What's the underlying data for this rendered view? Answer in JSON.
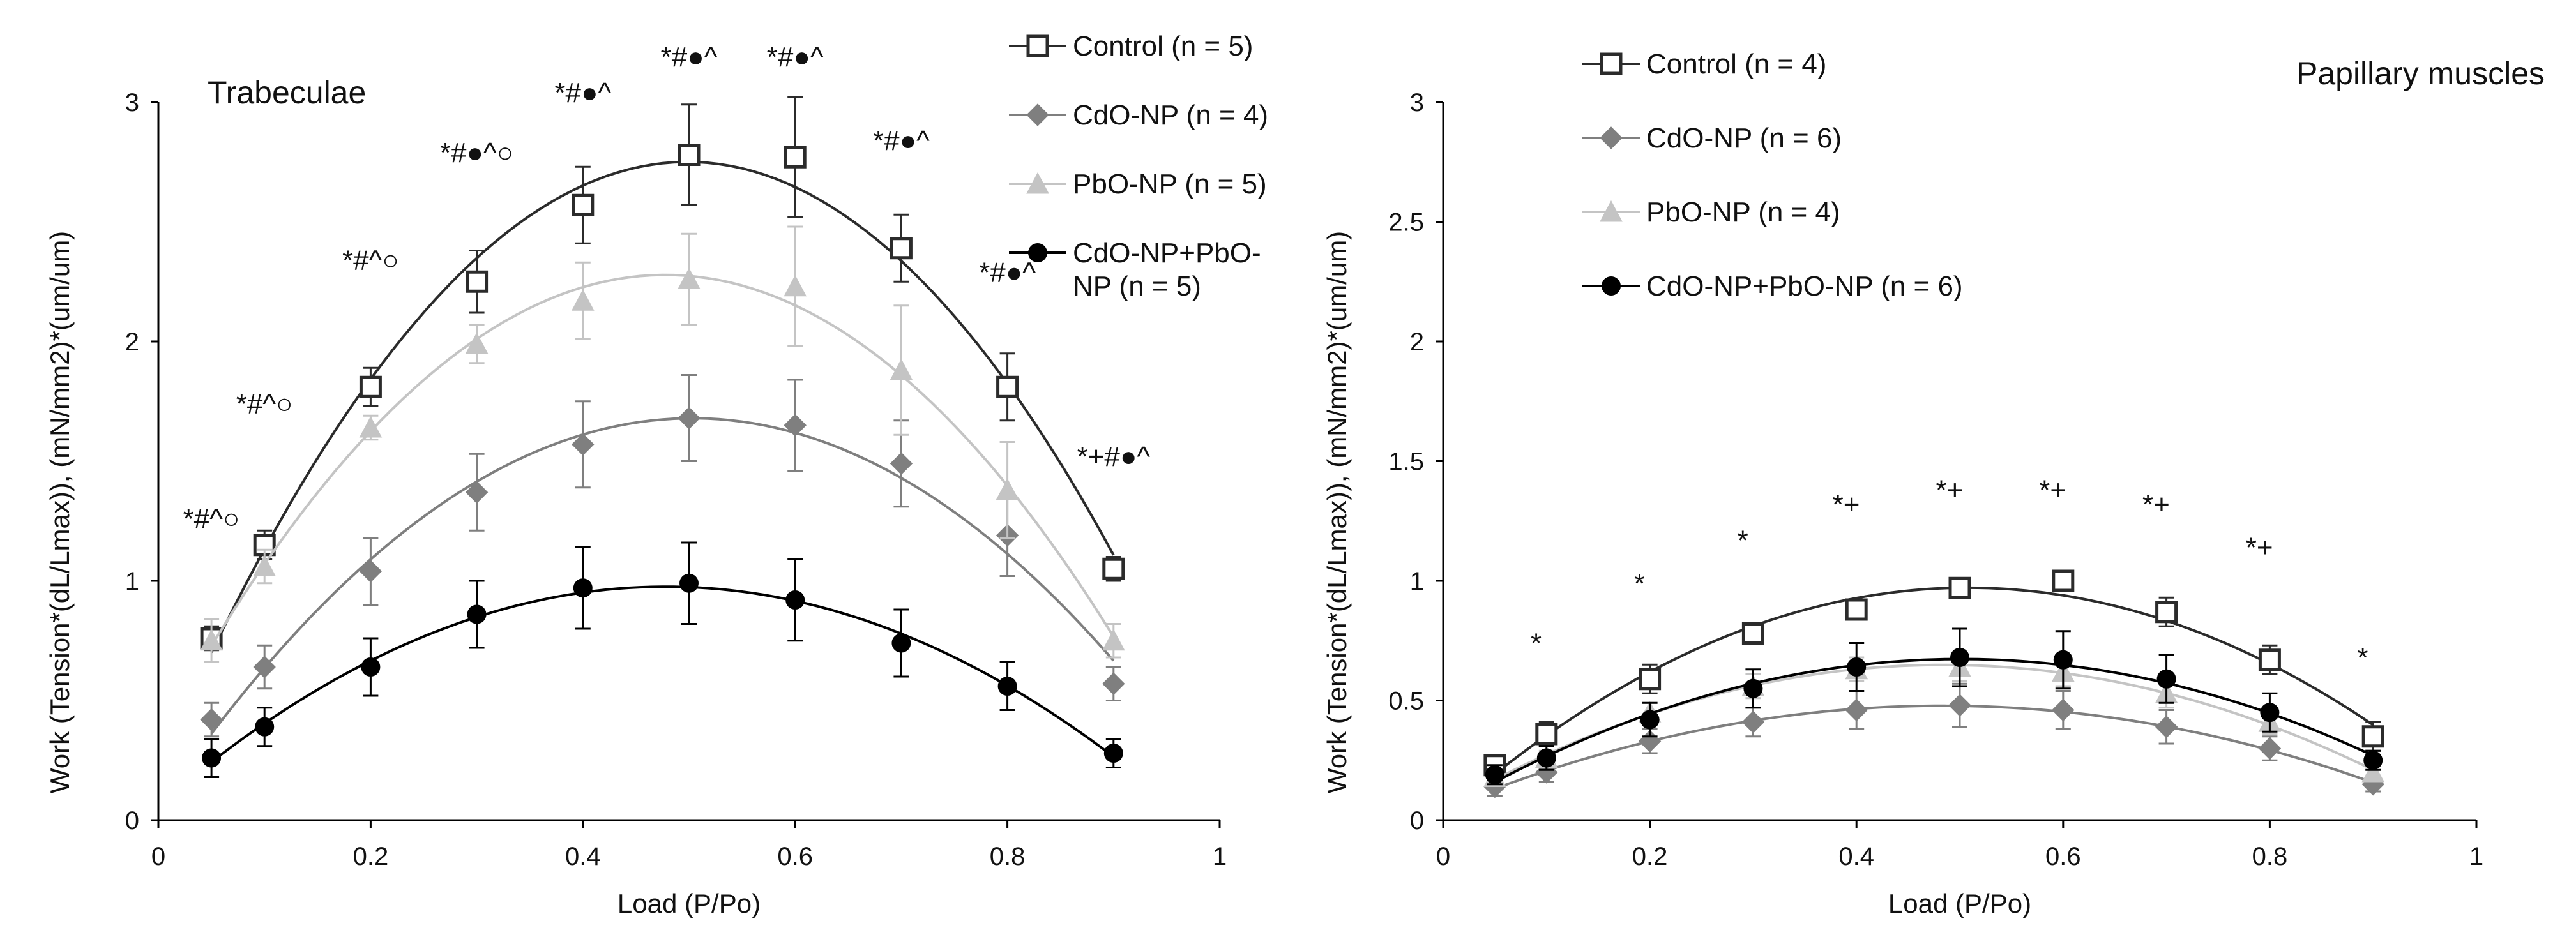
{
  "chart_data": [
    {
      "type": "line",
      "title": "Trabeculae",
      "xlabel": "Load (P/Po)",
      "ylabel": "Work (Tension*(dL/Lmax)),  (mN/mm2)*(um/um)",
      "xlim": [
        0,
        1
      ],
      "ylim": [
        0,
        3
      ],
      "xticks": [
        "0",
        "0.2",
        "0.4",
        "0.6",
        "0.8",
        "1"
      ],
      "yticks": [
        "0",
        "1",
        "2",
        "3"
      ],
      "x": [
        0.05,
        0.1,
        0.2,
        0.3,
        0.4,
        0.5,
        0.6,
        0.7,
        0.8,
        0.9
      ],
      "series": [
        {
          "name": "Control (n = 5)",
          "color": "#2b2b2b",
          "marker": "square-open",
          "values": [
            0.76,
            1.15,
            1.81,
            2.25,
            2.57,
            2.78,
            2.77,
            2.39,
            1.81,
            1.05
          ],
          "errors": [
            0.05,
            0.06,
            0.08,
            0.13,
            0.16,
            0.21,
            0.25,
            0.14,
            0.14,
            0.05
          ]
        },
        {
          "name": "CdO-NP (n = 4)",
          "color": "#7f7f7f",
          "marker": "diamond",
          "values": [
            0.42,
            0.64,
            1.04,
            1.37,
            1.57,
            1.68,
            1.65,
            1.49,
            1.19,
            0.57
          ],
          "errors": [
            0.07,
            0.09,
            0.14,
            0.16,
            0.18,
            0.18,
            0.19,
            0.18,
            0.17,
            0.07
          ]
        },
        {
          "name": "PbO-NP (n = 5)",
          "color": "#c4c4c4",
          "marker": "triangle",
          "values": [
            0.75,
            1.06,
            1.64,
            1.99,
            2.17,
            2.26,
            2.23,
            1.88,
            1.38,
            0.75
          ],
          "errors": [
            0.09,
            0.07,
            0.05,
            0.08,
            0.16,
            0.19,
            0.25,
            0.27,
            0.2,
            0.07
          ]
        },
        {
          "name": "CdO-NP+PbO-NP (n = 5)",
          "color": "#000000",
          "marker": "circle",
          "values": [
            0.26,
            0.39,
            0.64,
            0.86,
            0.97,
            0.99,
            0.92,
            0.74,
            0.56,
            0.28
          ],
          "errors": [
            0.08,
            0.08,
            0.12,
            0.14,
            0.17,
            0.17,
            0.17,
            0.14,
            0.1,
            0.06
          ]
        }
      ],
      "annotations": [
        {
          "x": 0.05,
          "y": 1.22,
          "text": "*#^○"
        },
        {
          "x": 0.1,
          "y": 1.7,
          "text": "*#^○"
        },
        {
          "x": 0.2,
          "y": 2.3,
          "text": "*#^○"
        },
        {
          "x": 0.3,
          "y": 2.75,
          "text": "*#●^○"
        },
        {
          "x": 0.4,
          "y": 3.0,
          "text": "*#●^"
        },
        {
          "x": 0.5,
          "y": 3.15,
          "text": "*#●^"
        },
        {
          "x": 0.6,
          "y": 3.15,
          "text": "*#●^"
        },
        {
          "x": 0.7,
          "y": 2.8,
          "text": "*#●^"
        },
        {
          "x": 0.8,
          "y": 2.25,
          "text": "*#●^"
        },
        {
          "x": 0.9,
          "y": 1.48,
          "text": "*+#●^"
        }
      ]
    },
    {
      "type": "line",
      "title": "Papillary muscles",
      "xlabel": "Load (P/Po)",
      "ylabel": "Work (Tension*(dL/Lmax)),  (mN/mm2)*(um/um)",
      "xlim": [
        0,
        1
      ],
      "ylim": [
        0,
        3
      ],
      "xticks": [
        "0",
        "0.2",
        "0.4",
        "0.6",
        "0.8",
        "1"
      ],
      "yticks": [
        "0",
        "0.5",
        "1",
        "1.5",
        "2",
        "2.5",
        "3"
      ],
      "x": [
        0.05,
        0.1,
        0.2,
        0.3,
        0.4,
        0.5,
        0.6,
        0.7,
        0.8,
        0.9
      ],
      "series": [
        {
          "name": "Control (n = 4)",
          "color": "#2b2b2b",
          "marker": "square-open",
          "values": [
            0.23,
            0.36,
            0.59,
            0.78,
            0.88,
            0.97,
            1.0,
            0.87,
            0.67,
            0.35
          ],
          "errors": [
            0.04,
            0.05,
            0.06,
            0.04,
            0.04,
            0.04,
            0.03,
            0.06,
            0.06,
            0.06
          ]
        },
        {
          "name": "CdO-NP (n = 6)",
          "color": "#7f7f7f",
          "marker": "diamond",
          "values": [
            0.14,
            0.2,
            0.33,
            0.41,
            0.46,
            0.48,
            0.46,
            0.39,
            0.3,
            0.15
          ],
          "errors": [
            0.04,
            0.04,
            0.05,
            0.06,
            0.08,
            0.09,
            0.08,
            0.07,
            0.05,
            0.03
          ]
        },
        {
          "name": "PbO-NP (n = 4)",
          "color": "#c4c4c4",
          "marker": "triangle",
          "values": [
            0.18,
            0.26,
            0.45,
            0.56,
            0.63,
            0.64,
            0.62,
            0.53,
            0.41,
            0.2
          ],
          "errors": [
            0.03,
            0.03,
            0.04,
            0.05,
            0.05,
            0.06,
            0.06,
            0.06,
            0.05,
            0.03
          ]
        },
        {
          "name": "CdO-NP+PbO-NP (n = 6)",
          "color": "#000000",
          "marker": "circle",
          "values": [
            0.19,
            0.26,
            0.42,
            0.55,
            0.64,
            0.68,
            0.67,
            0.59,
            0.45,
            0.25
          ],
          "errors": [
            0.04,
            0.05,
            0.07,
            0.08,
            0.1,
            0.12,
            0.12,
            0.1,
            0.08,
            0.04
          ]
        }
      ],
      "annotations": [
        {
          "x": 0.09,
          "y": 0.7,
          "text": "*"
        },
        {
          "x": 0.19,
          "y": 0.95,
          "text": "*"
        },
        {
          "x": 0.29,
          "y": 1.13,
          "text": "*"
        },
        {
          "x": 0.39,
          "y": 1.28,
          "text": "*+"
        },
        {
          "x": 0.49,
          "y": 1.34,
          "text": "*+"
        },
        {
          "x": 0.59,
          "y": 1.34,
          "text": "*+"
        },
        {
          "x": 0.69,
          "y": 1.28,
          "text": "*+"
        },
        {
          "x": 0.79,
          "y": 1.1,
          "text": "*+"
        },
        {
          "x": 0.89,
          "y": 0.64,
          "text": "*"
        }
      ]
    }
  ]
}
